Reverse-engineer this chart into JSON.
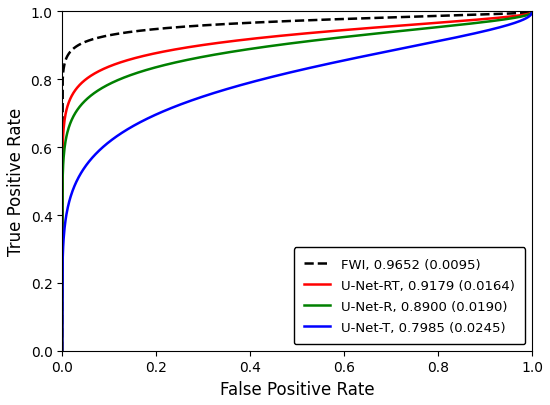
{
  "title": "",
  "xlabel": "False Positive Rate",
  "ylabel": "True Positive Rate",
  "xlim": [
    0.0,
    1.0
  ],
  "ylim": [
    0.0,
    1.0
  ],
  "xticks": [
    0.0,
    0.2,
    0.4,
    0.6,
    0.8,
    1.0
  ],
  "yticks": [
    0.0,
    0.2,
    0.4,
    0.6,
    0.8,
    1.0
  ],
  "curves": [
    {
      "label": "FWI, 0.9652 (0.0095)",
      "color": "black",
      "linestyle": "--",
      "linewidth": 1.8,
      "auc": 0.9652,
      "b": 0.35
    },
    {
      "label": "U-Net-RT, 0.9179 (0.0164)",
      "color": "red",
      "linestyle": "-",
      "linewidth": 1.8,
      "auc": 0.9179,
      "b": 0.4
    },
    {
      "label": "U-Net-R, 0.8900 (0.0190)",
      "color": "green",
      "linestyle": "-",
      "linewidth": 1.8,
      "auc": 0.89,
      "b": 0.42
    },
    {
      "label": "U-Net-T, 0.7985 (0.0245)",
      "color": "blue",
      "linestyle": "-",
      "linewidth": 1.8,
      "auc": 0.7985,
      "b": 0.5
    }
  ],
  "legend_loc": "lower right",
  "legend_fontsize": 9.5,
  "axis_fontsize": 12,
  "tick_fontsize": 10,
  "figsize": [
    5.5,
    4.06
  ],
  "dpi": 100,
  "background_color": "#ffffff"
}
